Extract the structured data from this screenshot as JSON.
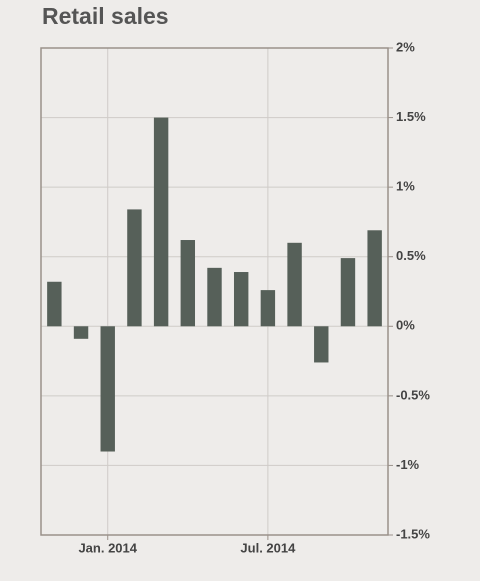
{
  "chart_data": {
    "type": "bar",
    "title": "Retail sales",
    "categories": [
      null,
      null,
      "Jan. 2014",
      null,
      null,
      null,
      null,
      null,
      "Jul. 2014",
      null,
      null,
      null,
      null
    ],
    "values": [
      0.32,
      -0.09,
      -0.9,
      0.84,
      1.5,
      0.62,
      0.42,
      0.39,
      0.26,
      0.6,
      -0.26,
      0.49,
      0.69
    ],
    "color": "#566059",
    "ylim": [
      -1.5,
      2
    ],
    "yticks": [
      {
        "value": -1.5,
        "label": "-1.5%"
      },
      {
        "value": -1,
        "label": "-1%"
      },
      {
        "value": -0.5,
        "label": "-0.5%"
      },
      {
        "value": 0,
        "label": "0%"
      },
      {
        "value": 0.5,
        "label": "0.5%"
      },
      {
        "value": 1,
        "label": "1%"
      },
      {
        "value": 1.5,
        "label": "1.5%"
      },
      {
        "value": 2,
        "label": "2%"
      }
    ],
    "grid": true
  }
}
